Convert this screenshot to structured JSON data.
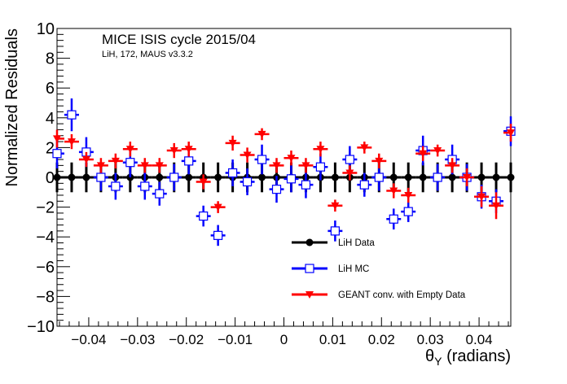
{
  "chart_data": {
    "type": "scatter",
    "title": "MICE ISIS cycle 2015/04",
    "subtitle": "LiH, 172, MAUS v3.3.2",
    "xlabel": "θY (radians)",
    "xlabel_main": "θ",
    "xlabel_sub": "Y",
    "xlabel_unit": " (radians)",
    "ylabel": "Normalized Residuals",
    "xlim": [
      -0.0465,
      0.0465
    ],
    "ylim": [
      -10,
      10
    ],
    "grid": false,
    "legend_position": "bottom-right",
    "x_ticks": [
      -0.04,
      -0.03,
      -0.02,
      -0.01,
      0,
      0.01,
      0.02,
      0.03,
      0.04
    ],
    "x_tick_labels": [
      "−0.04",
      "−0.03",
      "−0.02",
      "−0.01",
      "0",
      "0.01",
      "0.02",
      "0.03",
      "0.04"
    ],
    "y_ticks": [
      -10,
      -8,
      -6,
      -4,
      -2,
      0,
      2,
      4,
      6,
      8,
      10
    ],
    "y_tick_labels": [
      "−10",
      "−8",
      "−6",
      "−4",
      "−2",
      "0",
      "2",
      "4",
      "6",
      "8",
      "10"
    ],
    "x": [
      -0.0465,
      -0.0435,
      -0.0405,
      -0.0375,
      -0.0345,
      -0.0315,
      -0.0285,
      -0.0255,
      -0.0225,
      -0.0195,
      -0.0165,
      -0.0135,
      -0.0105,
      -0.0075,
      -0.0045,
      -0.0015,
      0.0015,
      0.0045,
      0.0075,
      0.0105,
      0.0135,
      0.0165,
      0.0195,
      0.0225,
      0.0255,
      0.0285,
      0.0315,
      0.0345,
      0.0375,
      0.0405,
      0.0435,
      0.0465
    ],
    "series": [
      {
        "name": "LiH Data",
        "color": "#000000",
        "marker": "filled-circle",
        "values": [
          0,
          0,
          0,
          0,
          0,
          0,
          0,
          0,
          0,
          0,
          0,
          0,
          0,
          0,
          0,
          0,
          0,
          0,
          0,
          0,
          0,
          0,
          0,
          0,
          0,
          0,
          0,
          0,
          0,
          0,
          0,
          0
        ],
        "errors": [
          1,
          1,
          1,
          1,
          1,
          1,
          1,
          1,
          1,
          1,
          1,
          1,
          1,
          1,
          1,
          1,
          1,
          1,
          1,
          1,
          1,
          1,
          1,
          1,
          1,
          1,
          1,
          1,
          1,
          1,
          1,
          1
        ]
      },
      {
        "name": "LiH MC",
        "color": "#0000ff",
        "marker": "open-square",
        "values": [
          1.6,
          4.2,
          1.7,
          0.0,
          -0.6,
          1.0,
          -0.6,
          -1.1,
          0.0,
          1.1,
          -2.6,
          -3.9,
          0.3,
          -0.3,
          1.2,
          -0.8,
          -0.1,
          -0.5,
          0.7,
          -3.6,
          1.2,
          -0.5,
          0.0,
          -2.8,
          -2.3,
          1.8,
          0.0,
          1.2,
          0.0,
          -1.3,
          -1.6,
          3.1
        ],
        "errors": [
          1.0,
          1.1,
          1.0,
          0.9,
          0.9,
          1.0,
          0.9,
          0.8,
          0.9,
          0.9,
          0.7,
          0.7,
          0.9,
          0.9,
          1.0,
          0.9,
          0.9,
          0.9,
          0.9,
          0.7,
          0.9,
          0.8,
          0.9,
          0.7,
          0.7,
          1.0,
          0.9,
          1.0,
          0.9,
          0.8,
          0.8,
          1.0
        ]
      },
      {
        "name": "GEANT conv. with Empty Data",
        "color": "#ff0000",
        "marker": "filled-triangle-down",
        "values": [
          2.6,
          2.4,
          1.2,
          0.8,
          1.1,
          1.9,
          0.8,
          0.8,
          1.8,
          1.9,
          -0.3,
          -2.0,
          2.3,
          1.5,
          2.9,
          0.8,
          1.3,
          0.8,
          1.9,
          -1.9,
          0.3,
          2.0,
          1.1,
          -0.9,
          -1.2,
          1.6,
          1.8,
          0.8,
          0.0,
          -1.3,
          -1.9,
          3.0
        ],
        "errors": [
          0.6,
          0.5,
          0.5,
          0.5,
          0.5,
          0.5,
          0.5,
          0.5,
          0.5,
          0.5,
          0.5,
          0.4,
          0.5,
          0.5,
          0.4,
          0.5,
          0.5,
          0.5,
          0.5,
          0.4,
          0.5,
          0.4,
          0.5,
          0.5,
          0.5,
          0.5,
          0.4,
          0.5,
          0.6,
          0.7,
          0.9,
          0.6
        ]
      }
    ]
  }
}
